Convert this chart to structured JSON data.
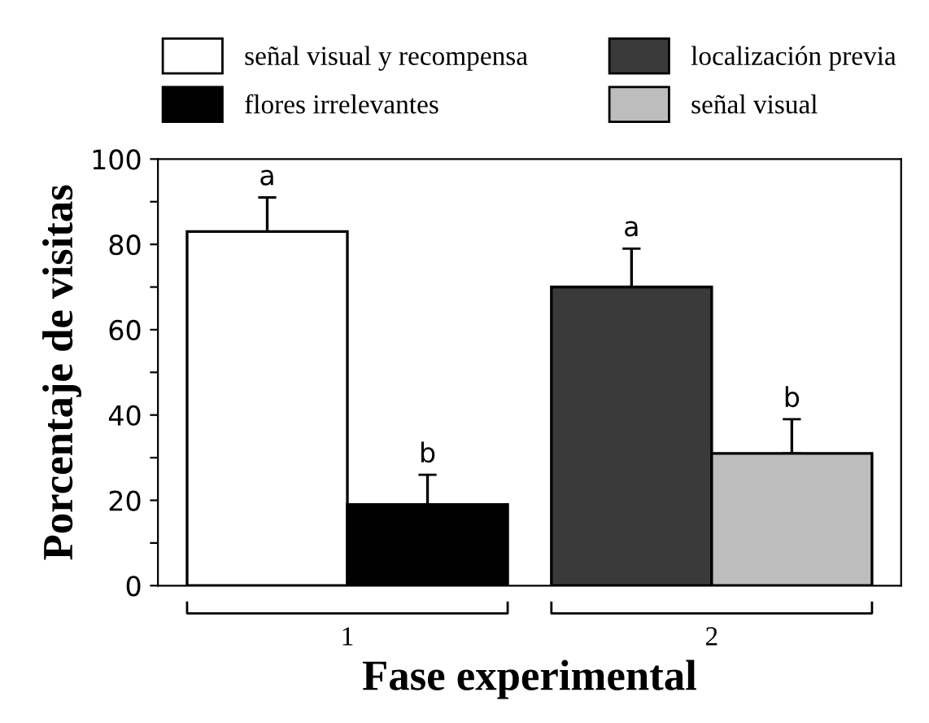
{
  "chart_data": {
    "type": "bar",
    "xlabel": "Fase experimental",
    "ylabel": "Porcentaje de visitas",
    "categories": [
      "1",
      "2"
    ],
    "series": [
      {
        "name": "señal visual y recompensa",
        "color": "#ffffff",
        "values": [
          83,
          null
        ],
        "errors": [
          [
            83,
            91
          ],
          null
        ],
        "value_labels": [
          "a",
          null
        ]
      },
      {
        "name": "flores irrelevantes",
        "color": "#000000",
        "values": [
          19,
          null
        ],
        "errors": [
          [
            19,
            26
          ],
          null
        ],
        "value_labels": [
          "b",
          null
        ]
      },
      {
        "name": "localización previa",
        "color": "#3a3a3a",
        "values": [
          null,
          70
        ],
        "errors": [
          null,
          [
            70,
            79
          ]
        ],
        "value_labels": [
          null,
          "a"
        ]
      },
      {
        "name": "señal visual",
        "color": "#bdbdbd",
        "values": [
          null,
          31
        ],
        "errors": [
          null,
          [
            31,
            39
          ]
        ],
        "value_labels": [
          null,
          "b"
        ]
      }
    ],
    "ylim": [
      0,
      100
    ],
    "yticks": [
      0,
      {
        "value": 10,
        "label": null
      },
      20,
      {
        "value": 30,
        "label": null
      },
      40,
      {
        "value": 50,
        "label": null
      },
      60,
      {
        "value": 70,
        "label": null
      },
      80,
      {
        "value": 90,
        "label": null
      },
      100
    ],
    "grid": false,
    "legend": "top"
  }
}
